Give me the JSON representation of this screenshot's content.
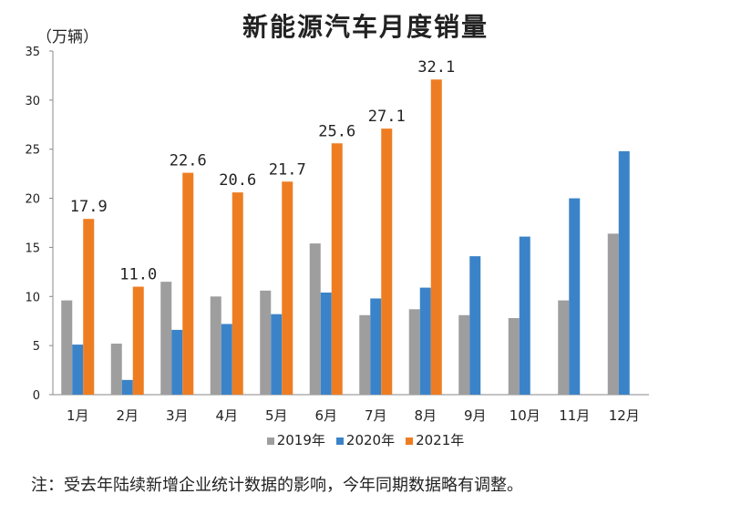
{
  "chart_data": {
    "type": "bar",
    "title": "新能源汽车月度销量",
    "unit": "（万辆）",
    "categories": [
      "1月",
      "2月",
      "3月",
      "4月",
      "5月",
      "6月",
      "7月",
      "8月",
      "9月",
      "10月",
      "11月",
      "12月"
    ],
    "series": [
      {
        "name": "2019年",
        "color": "#9e9e9e",
        "values": [
          9.6,
          5.2,
          11.5,
          10.0,
          10.6,
          15.4,
          8.1,
          8.7,
          8.1,
          7.8,
          9.6,
          16.4
        ]
      },
      {
        "name": "2020年",
        "color": "#3b83c8",
        "values": [
          5.1,
          1.5,
          6.6,
          7.2,
          8.2,
          10.4,
          9.8,
          10.9,
          14.1,
          16.1,
          20.0,
          24.8
        ]
      },
      {
        "name": "2021年",
        "color": "#ee7d22",
        "values": [
          17.9,
          11.0,
          22.6,
          20.6,
          21.7,
          25.6,
          27.1,
          32.1,
          null,
          null,
          null,
          null
        ]
      }
    ],
    "data_labels_2021": [
      "17.9",
      "11.0",
      "22.6",
      "20.6",
      "21.7",
      "25.6",
      "27.1",
      "32.1"
    ],
    "ylim": [
      0,
      35
    ],
    "yticks": [
      "0",
      "5",
      "10",
      "15",
      "20",
      "25",
      "30",
      "35"
    ],
    "legend_position": "bottom",
    "grid": false
  },
  "footnote": "注：受去年陆续新增企业统计数据的影响，今年同期数据略有调整。"
}
